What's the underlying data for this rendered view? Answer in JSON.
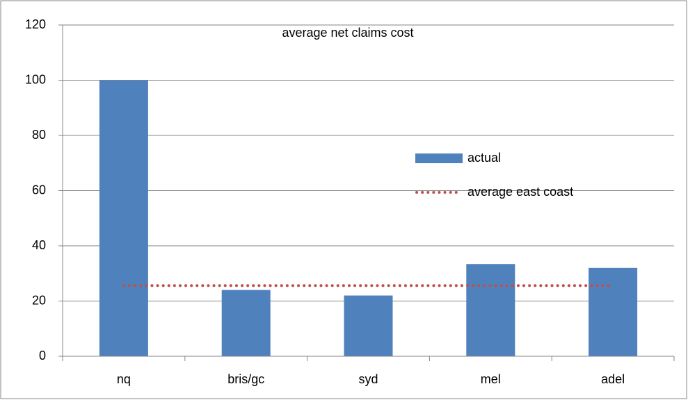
{
  "chart_data": {
    "type": "bar",
    "title": "average net claims cost",
    "categories": [
      "nq",
      "bris/gc",
      "syd",
      "mel",
      "adel"
    ],
    "series": [
      {
        "name": "actual",
        "type": "bar",
        "color": "#4f81bd",
        "values": [
          100,
          24,
          22,
          33.4,
          32
        ]
      },
      {
        "name": "average east coast",
        "type": "line",
        "color": "#c0504d",
        "dash": "dotted",
        "values": [
          25.6,
          25.6,
          25.6,
          25.6,
          25.6
        ]
      }
    ],
    "ylim": [
      0,
      120
    ],
    "yticks": [
      0,
      20,
      40,
      60,
      80,
      100,
      120
    ],
    "grid": true
  }
}
